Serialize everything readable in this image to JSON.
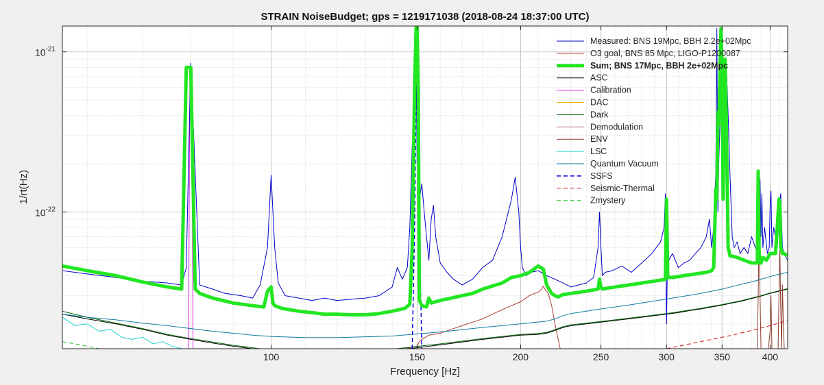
{
  "chart_data": {
    "type": "line",
    "title": "STRAIN NoiseBudget; gps = 1219171038 (2018-08-24 18:37:00 UTC)",
    "xlabel": "Frequency [Hz]",
    "ylabel": "1/rt(Hz)",
    "xscale": "log",
    "yscale": "log",
    "xlim": [
      56,
      420
    ],
    "ylim": [
      1.4e-23,
      1.45e-21
    ],
    "xticks": [
      100,
      150,
      200,
      250,
      300,
      350,
      400
    ],
    "xtick_labels": [
      "100",
      "150",
      "200",
      "250",
      "300",
      "350",
      "400"
    ],
    "yticks": [
      1e-22,
      1e-21
    ],
    "ytick_labels": [
      {
        "base": "10",
        "exp": "-22"
      },
      {
        "base": "10",
        "exp": "-21"
      }
    ],
    "grid": true,
    "legend_position": "top-right",
    "series": [
      {
        "name": "Measured: BNS 19Mpc, BBH 2.2e+02Mpc",
        "color": "#0000cc",
        "style": "solid",
        "width": 1,
        "x": [
          56,
          60,
          65,
          70,
          75,
          78,
          79,
          80,
          82,
          85,
          88,
          92,
          95,
          97,
          99,
          100,
          101,
          102,
          104,
          108,
          112,
          116,
          120,
          125,
          130,
          135,
          140,
          142,
          144,
          146,
          147,
          148,
          149,
          149.5,
          150,
          150.5,
          151,
          152,
          153,
          154,
          155,
          156,
          157,
          158,
          160,
          163,
          166,
          170,
          175,
          180,
          185,
          190,
          195,
          197,
          199,
          200,
          201,
          203,
          206,
          210,
          215,
          220,
          225,
          230,
          240,
          245,
          248,
          249,
          250,
          251,
          253,
          258,
          265,
          272,
          280,
          288,
          295,
          298,
          299,
          300,
          301,
          302,
          305,
          310,
          315,
          320,
          325,
          330,
          335,
          338,
          340,
          342,
          344,
          345,
          346,
          347,
          348,
          349,
          350,
          351,
          352,
          353,
          354,
          356,
          358,
          360,
          362,
          365,
          368,
          372,
          376,
          380,
          384,
          387,
          388,
          389,
          390,
          391,
          392,
          394,
          397,
          399,
          400,
          401,
          402,
          404,
          406,
          408,
          410,
          411,
          412,
          414,
          416,
          418,
          420
        ],
        "y": [
          4.3e-23,
          4.1e-23,
          3.9e-23,
          3.7e-23,
          3.6e-23,
          3.5e-23,
          4.5e-23,
          8.5e-22,
          3.5e-23,
          3.3e-23,
          3.1e-23,
          3e-23,
          2.9e-23,
          3.5e-23,
          6e-23,
          1.7e-22,
          6e-23,
          3.6e-23,
          3e-23,
          2.9e-23,
          2.8e-23,
          2.9e-23,
          2.8e-23,
          2.85e-23,
          2.9e-23,
          3e-23,
          3.4e-23,
          4.5e-23,
          3.8e-23,
          4.5e-23,
          8e-23,
          2.6e-22,
          3.5e-22,
          1.4e-21,
          2e-22,
          3.2e-22,
          1.2e-22,
          1.5e-22,
          1e-22,
          7e-23,
          5e-23,
          9e-23,
          1.1e-22,
          7e-23,
          4.8e-23,
          4.2e-23,
          3.8e-23,
          3.5e-23,
          3.8e-23,
          4.5e-23,
          5e-23,
          7e-23,
          1.2e-22,
          1.65e-22,
          1e-22,
          6e-23,
          4.5e-23,
          4e-23,
          4.2e-23,
          4.3e-23,
          4e-23,
          3.8e-23,
          3.6e-23,
          3.4e-23,
          3.6e-23,
          3.9e-23,
          6e-23,
          1e-22,
          6e-23,
          4e-23,
          4.2e-23,
          4.3e-23,
          4.6e-23,
          4.2e-23,
          4.8e-23,
          5.5e-23,
          6.5e-23,
          8e-23,
          1.3e-22,
          2e-23,
          7e-23,
          5e-23,
          5.5e-23,
          4.5e-23,
          4.8e-23,
          5e-23,
          5.5e-23,
          6e-23,
          7e-23,
          9e-23,
          6e-23,
          8e-23,
          1.8e-22,
          1.4e-21,
          1e-22,
          2.2e-22,
          3.5e-22,
          1.4e-21,
          8e-22,
          2e-22,
          1.5e-22,
          7e-22,
          9e-22,
          4e-22,
          1.6e-22,
          7e-23,
          6e-23,
          6.5e-23,
          5.5e-23,
          6e-23,
          5.5e-23,
          7e-23,
          6e-23,
          5.5e-23,
          9e-23,
          1.6e-22,
          7e-23,
          1.3e-22,
          6e-23,
          8e-23,
          5.5e-23,
          6e-23,
          1.1e-22,
          1.35e-22,
          6e-23,
          8e-23,
          7e-23,
          6e-23,
          9e-23,
          1.2e-22,
          1.3e-22,
          6e-23,
          5.5e-23,
          5.2e-23,
          5e-23
        ]
      },
      {
        "name": "O3 goal, BNS 85 Mpc, LIGO-P1200087",
        "color": "#b03a2e",
        "style": "solid",
        "width": 1,
        "x": [
          140,
          145,
          150,
          151,
          152,
          155,
          160,
          165,
          170,
          175,
          180,
          185,
          190,
          195,
          200,
          205,
          208,
          210,
          212,
          213,
          214,
          215,
          216,
          218,
          220,
          222,
          224
        ],
        "y": [
          1.3e-23,
          1.4e-23,
          1.45e-23,
          1.55e-23,
          1.6e-23,
          1.7e-23,
          1.75e-23,
          1.85e-23,
          1.95e-23,
          2.05e-23,
          2.15e-23,
          2.3e-23,
          2.45e-23,
          2.6e-23,
          2.75e-23,
          3e-23,
          3.1e-23,
          3.15e-23,
          3.3e-23,
          3.45e-23,
          3.3e-23,
          3.2e-23,
          3.1e-23,
          2.6e-23,
          2e-23,
          1.6e-23,
          1.3e-23
        ]
      },
      {
        "name": "Sum; BNS 17Mpc, BBH 2e+02Mpc",
        "color": "#22e622",
        "style": "solid",
        "width": 5,
        "x": [
          56,
          60,
          65,
          70,
          75,
          78,
          79,
          80,
          81,
          82,
          85,
          90,
          95,
          98,
          99,
          100,
          100.5,
          101,
          103,
          108,
          112,
          116,
          120,
          125,
          130,
          135,
          140,
          145,
          147,
          148,
          149,
          149.6,
          150,
          150.5,
          151,
          152,
          154,
          155,
          156,
          160,
          165,
          170,
          175,
          180,
          185,
          190,
          195,
          200,
          205,
          210,
          213,
          215,
          218,
          220,
          222,
          225,
          230,
          240,
          248,
          249,
          250,
          251,
          255,
          265,
          275,
          285,
          295,
          299,
          300,
          301,
          302,
          305,
          315,
          325,
          335,
          340,
          342,
          344,
          345,
          346,
          347,
          348,
          349,
          350,
          351,
          352,
          353,
          354,
          356,
          358,
          360,
          365,
          372,
          380,
          386,
          387,
          388,
          389,
          390,
          392,
          396,
          400,
          404,
          406,
          408,
          410,
          411,
          412,
          414,
          416,
          418,
          420
        ],
        "y": [
          4.6e-23,
          4.3e-23,
          4e-23,
          3.65e-23,
          3.4e-23,
          3.3e-23,
          8e-22,
          8e-22,
          3.3e-23,
          3.1e-23,
          2.9e-23,
          2.7e-23,
          2.6e-23,
          2.55e-23,
          3.2e-23,
          3.4e-23,
          2.7e-23,
          2.6e-23,
          2.5e-23,
          2.4e-23,
          2.35e-23,
          2.3e-23,
          2.3e-23,
          2.28e-23,
          2.28e-23,
          2.32e-23,
          2.4e-23,
          2.5e-23,
          2.65e-23,
          6e-23,
          6e-22,
          1.45e-21,
          1.45e-21,
          6e-22,
          2.8e-23,
          2.6e-23,
          2.55e-23,
          2.9e-23,
          2.7e-23,
          2.8e-23,
          2.9e-23,
          3e-23,
          3.1e-23,
          3.3e-23,
          3.45e-23,
          3.6e-23,
          3.9e-23,
          4e-23,
          4.2e-23,
          4.6e-23,
          4.4e-23,
          3.5e-23,
          3.1e-23,
          3e-23,
          2.95e-23,
          3.05e-23,
          3.1e-23,
          3.2e-23,
          3.3e-23,
          3.8e-23,
          3.4e-23,
          3.3e-23,
          3.35e-23,
          3.45e-23,
          3.55e-23,
          3.65e-23,
          3.75e-23,
          3.8e-23,
          1.2e-22,
          3.9e-23,
          3.9e-23,
          3.9e-23,
          4e-23,
          4.1e-23,
          4.2e-23,
          4.3e-23,
          4.5e-23,
          1.4e-22,
          1.2e-22,
          4.2e-22,
          3.5e-22,
          8e-22,
          1.4e-21,
          8e-22,
          1.2e-22,
          4.5e-22,
          9e-22,
          4.5e-22,
          6e-23,
          5.3e-23,
          5.3e-23,
          5.2e-23,
          5e-23,
          4.8e-23,
          4.8e-23,
          1.8e-22,
          5.5e-23,
          4.8e-23,
          4.8e-23,
          5.2e-23,
          5e-23,
          5.5e-23,
          5.5e-23,
          5.5e-23,
          8e-23,
          1.2e-22,
          1.1e-22,
          6e-23,
          5.5e-23,
          5.5e-23,
          5.4e-23,
          5.4e-23
        ]
      },
      {
        "name": "ASC",
        "color": "#000000",
        "style": "solid",
        "width": 1,
        "x": [
          56,
          60,
          65,
          70,
          75,
          80,
          85,
          90,
          95,
          100,
          105,
          110,
          115,
          120,
          130,
          140,
          150,
          160,
          170,
          180,
          190,
          200,
          210,
          215,
          220,
          225,
          230,
          240,
          250,
          260,
          270,
          280,
          290,
          300,
          310,
          320,
          330,
          340,
          350,
          360,
          370,
          380,
          390,
          400,
          410,
          420
        ],
        "y": [
          2.3e-23,
          2.15e-23,
          2e-23,
          1.85e-23,
          1.7e-23,
          1.6e-23,
          1.52e-23,
          1.45e-23,
          1.4e-23,
          1.35e-23,
          1.32e-23,
          1.3e-23,
          1.3e-23,
          1.31e-23,
          1.33e-23,
          1.37e-23,
          1.42e-23,
          1.48e-23,
          1.54e-23,
          1.6e-23,
          1.65e-23,
          1.7e-23,
          1.72e-23,
          1.75e-23,
          1.82e-23,
          1.9e-23,
          1.95e-23,
          2e-23,
          2.05e-23,
          2.1e-23,
          2.15e-23,
          2.2e-23,
          2.25e-23,
          2.3e-23,
          2.35e-23,
          2.42e-23,
          2.48e-23,
          2.55e-23,
          2.62e-23,
          2.7e-23,
          2.78e-23,
          2.88e-23,
          2.98e-23,
          3.1e-23,
          3.2e-23,
          3.3e-23
        ]
      },
      {
        "name": "Calibration",
        "color": "#e020e0",
        "style": "solid",
        "width": 1,
        "x": [
          79.5,
          79.8,
          80.2,
          80.5
        ],
        "y": [
          1.4e-23,
          8e-22,
          8e-22,
          1.4e-23
        ]
      },
      {
        "name": "DAC",
        "color": "#f0b400",
        "style": "solid",
        "width": 1,
        "x": [],
        "y": []
      },
      {
        "name": "Dark",
        "color": "#006400",
        "style": "solid",
        "width": 1,
        "x": [
          56,
          60,
          65,
          70,
          75,
          80,
          85,
          90,
          95,
          100,
          110,
          120,
          140,
          160,
          180,
          200,
          210,
          215,
          220,
          225,
          230,
          240,
          250,
          260,
          270,
          280,
          290,
          300,
          310,
          320,
          330,
          340,
          350,
          360,
          370,
          380,
          390,
          400,
          410,
          420
        ],
        "y": [
          2.4e-23,
          2.2e-23,
          2.02e-23,
          1.87e-23,
          1.72e-23,
          1.62e-23,
          1.54e-23,
          1.47e-23,
          1.42e-23,
          1.37e-23,
          1.33e-23,
          1.33e-23,
          1.39e-23,
          1.5e-23,
          1.62e-23,
          1.72e-23,
          1.74e-23,
          1.77e-23,
          1.84e-23,
          1.92e-23,
          1.97e-23,
          2.02e-23,
          2.07e-23,
          2.12e-23,
          2.17e-23,
          2.22e-23,
          2.27e-23,
          2.32e-23,
          2.38e-23,
          2.44e-23,
          2.5e-23,
          2.57e-23,
          2.64e-23,
          2.72e-23,
          2.8e-23,
          2.9e-23,
          3e-23,
          3.12e-23,
          3.22e-23,
          3.32e-23
        ]
      },
      {
        "name": "Demodulation",
        "color": "#c07090",
        "style": "solid",
        "width": 1,
        "x": [],
        "y": []
      },
      {
        "name": "ENV",
        "color": "#8b3a2b",
        "style": "solid",
        "width": 1,
        "x": [
          386,
          387,
          388,
          389,
          390,
          398,
          400,
          401,
          402,
          409,
          410,
          411,
          412,
          413,
          414,
          415,
          416
        ],
        "y": [
          1.4e-23,
          3e-23,
          8e-23,
          3e-23,
          1.4e-23,
          1.4e-23,
          1.8e-23,
          3e-23,
          1.4e-23,
          1.4e-23,
          3e-23,
          6e-23,
          2.5e-23,
          1.4e-23,
          3.5e-23,
          2e-23,
          1.4e-23
        ]
      },
      {
        "name": "LSC",
        "color": "#20d0d0",
        "style": "solid",
        "width": 1,
        "x": [
          56,
          58,
          60,
          62,
          64,
          66,
          68,
          70,
          72,
          74,
          76,
          78
        ],
        "y": [
          2.2e-23,
          1.95e-23,
          2e-23,
          1.8e-23,
          1.85e-23,
          1.65e-23,
          1.6e-23,
          1.65e-23,
          1.5e-23,
          1.55e-23,
          1.45e-23,
          1.4e-23
        ]
      },
      {
        "name": "Quantum Vacuum",
        "color": "#0a7aa0",
        "style": "solid",
        "width": 1,
        "x": [
          56,
          60,
          65,
          70,
          75,
          80,
          85,
          90,
          95,
          100,
          110,
          120,
          140,
          160,
          180,
          200,
          215,
          220,
          225,
          230,
          240,
          250,
          260,
          270,
          280,
          290,
          300,
          310,
          320,
          330,
          340,
          350,
          360,
          370,
          380,
          390,
          400,
          410,
          420
        ],
        "y": [
          2.3e-23,
          2.2e-23,
          2.12e-23,
          2.02e-23,
          1.95e-23,
          1.87e-23,
          1.8e-23,
          1.75e-23,
          1.7e-23,
          1.67e-23,
          1.64e-23,
          1.64e-23,
          1.68e-23,
          1.78e-23,
          1.9e-23,
          2e-23,
          2.08e-23,
          2.15e-23,
          2.25e-23,
          2.32e-23,
          2.4e-23,
          2.48e-23,
          2.55e-23,
          2.62e-23,
          2.7e-23,
          2.78e-23,
          2.86e-23,
          2.94e-23,
          3.02e-23,
          3.1e-23,
          3.2e-23,
          3.3e-23,
          3.42e-23,
          3.54e-23,
          3.66e-23,
          3.8e-23,
          3.95e-23,
          4.08e-23,
          4.2e-23
        ]
      },
      {
        "name": "SSFS",
        "color": "#0000dd",
        "style": "dashed",
        "width": 1.5,
        "x": [
          148,
          149,
          149.5,
          150,
          150.5,
          151,
          152
        ],
        "y": [
          1.4e-23,
          8e-23,
          4e-22,
          1.45e-21,
          4e-22,
          8e-23,
          1.4e-23
        ]
      },
      {
        "name": "Seismic-Thermal",
        "color": "#d01010",
        "style": "dashed",
        "width": 1,
        "x": [
          300,
          320,
          340,
          360,
          380,
          400,
          420
        ],
        "y": [
          1.4e-23,
          1.5e-23,
          1.6e-23,
          1.7e-23,
          1.82e-23,
          1.95e-23,
          2.1e-23
        ]
      },
      {
        "name": "Zmystery",
        "color": "#20c020",
        "style": "dashed",
        "width": 1,
        "x": [
          56,
          58,
          60,
          62
        ],
        "y": [
          1.55e-23,
          1.5e-23,
          1.45e-23,
          1.4e-23
        ]
      }
    ]
  }
}
